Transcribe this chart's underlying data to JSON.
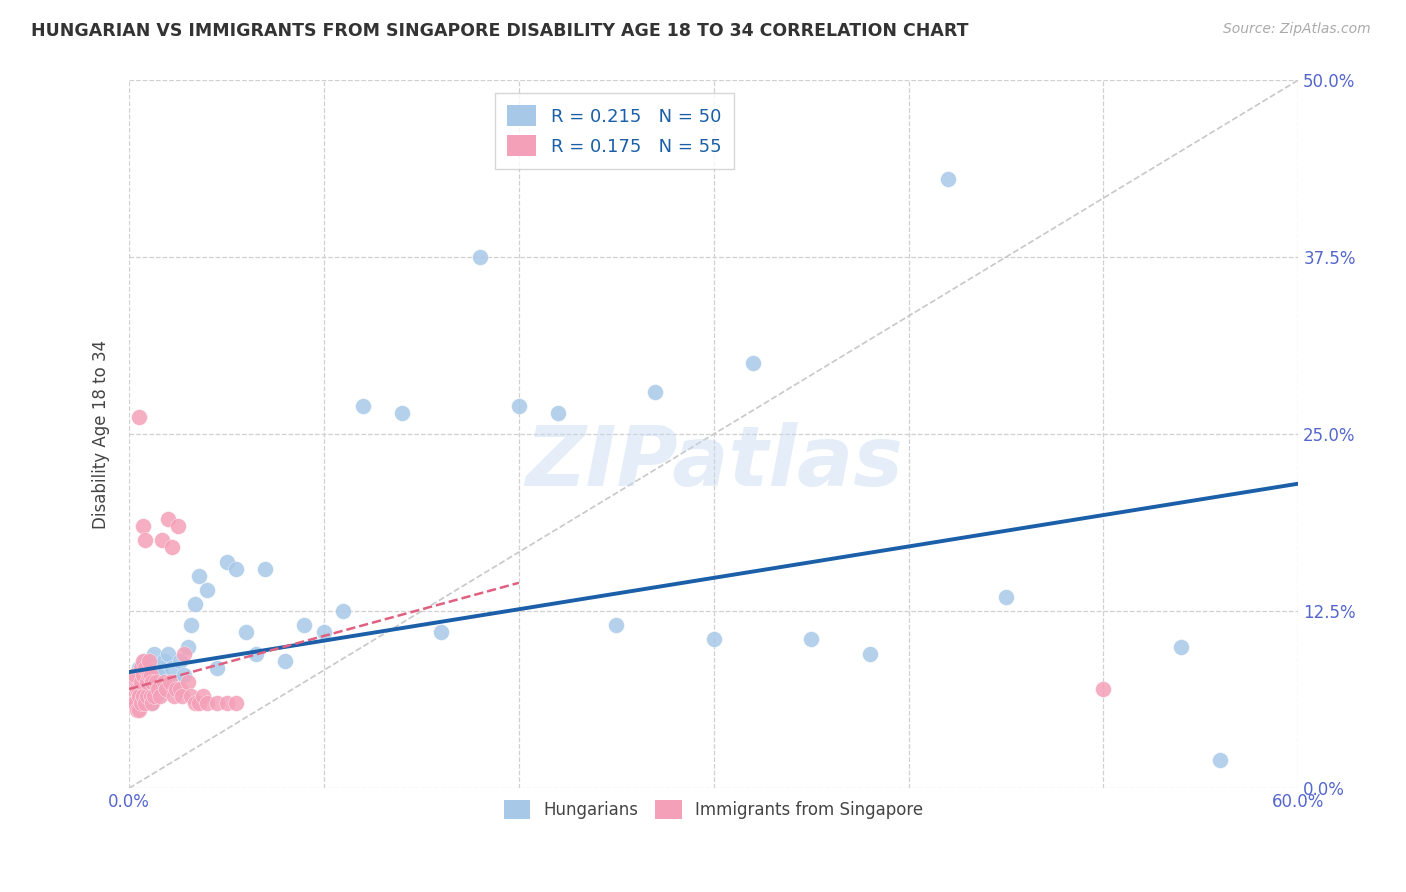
{
  "title": "HUNGARIAN VS IMMIGRANTS FROM SINGAPORE DISABILITY AGE 18 TO 34 CORRELATION CHART",
  "source": "Source: ZipAtlas.com",
  "ylabel": "Disability Age 18 to 34",
  "xlim": [
    0.0,
    0.6
  ],
  "ylim": [
    0.0,
    0.5
  ],
  "xticks": [
    0.0,
    0.1,
    0.2,
    0.3,
    0.4,
    0.5,
    0.6
  ],
  "yticks": [
    0.0,
    0.125,
    0.25,
    0.375,
    0.5
  ],
  "color_hungarian": "#a8c8e8",
  "color_singapore": "#f4a0b8",
  "color_hungarian_line": "#1a5fa8",
  "color_singapore_line": "#e06080",
  "color_diagonal": "#c8c8c8",
  "color_axis_text": "#5566cc",
  "background_color": "#ffffff",
  "watermark": "ZIPatlas",
  "legend_r1": "R = 0.215",
  "legend_n1": "N = 50",
  "legend_r2": "R = 0.175",
  "legend_n2": "N = 55",
  "hun_x": [
    0.005,
    0.006,
    0.007,
    0.008,
    0.009,
    0.01,
    0.011,
    0.012,
    0.013,
    0.014,
    0.015,
    0.016,
    0.017,
    0.018,
    0.02,
    0.022,
    0.024,
    0.026,
    0.028,
    0.03,
    0.032,
    0.034,
    0.036,
    0.04,
    0.045,
    0.05,
    0.055,
    0.06,
    0.065,
    0.07,
    0.08,
    0.09,
    0.1,
    0.11,
    0.12,
    0.14,
    0.16,
    0.18,
    0.2,
    0.22,
    0.25,
    0.27,
    0.3,
    0.32,
    0.35,
    0.38,
    0.42,
    0.45,
    0.54,
    0.56
  ],
  "hun_y": [
    0.085,
    0.075,
    0.065,
    0.09,
    0.07,
    0.08,
    0.06,
    0.085,
    0.095,
    0.065,
    0.075,
    0.085,
    0.08,
    0.09,
    0.095,
    0.085,
    0.075,
    0.09,
    0.08,
    0.1,
    0.115,
    0.13,
    0.15,
    0.14,
    0.085,
    0.16,
    0.155,
    0.11,
    0.095,
    0.155,
    0.09,
    0.115,
    0.11,
    0.125,
    0.27,
    0.265,
    0.11,
    0.375,
    0.27,
    0.265,
    0.115,
    0.28,
    0.105,
    0.3,
    0.105,
    0.095,
    0.43,
    0.135,
    0.1,
    0.02
  ],
  "sin_x": [
    0.001,
    0.002,
    0.002,
    0.003,
    0.003,
    0.004,
    0.004,
    0.005,
    0.005,
    0.005,
    0.006,
    0.006,
    0.006,
    0.007,
    0.007,
    0.007,
    0.008,
    0.008,
    0.009,
    0.009,
    0.01,
    0.01,
    0.011,
    0.011,
    0.012,
    0.012,
    0.013,
    0.014,
    0.015,
    0.016,
    0.017,
    0.018,
    0.019,
    0.02,
    0.021,
    0.022,
    0.023,
    0.024,
    0.025,
    0.026,
    0.027,
    0.028,
    0.03,
    0.032,
    0.034,
    0.036,
    0.038,
    0.04,
    0.045,
    0.05,
    0.055,
    0.5,
    0.005,
    0.007,
    0.008
  ],
  "sin_y": [
    0.065,
    0.06,
    0.075,
    0.06,
    0.08,
    0.055,
    0.07,
    0.055,
    0.07,
    0.065,
    0.06,
    0.075,
    0.085,
    0.065,
    0.08,
    0.09,
    0.06,
    0.085,
    0.065,
    0.075,
    0.08,
    0.09,
    0.065,
    0.08,
    0.06,
    0.075,
    0.065,
    0.075,
    0.07,
    0.065,
    0.175,
    0.075,
    0.07,
    0.19,
    0.075,
    0.17,
    0.065,
    0.07,
    0.185,
    0.07,
    0.065,
    0.095,
    0.075,
    0.065,
    0.06,
    0.06,
    0.065,
    0.06,
    0.06,
    0.06,
    0.06,
    0.07,
    0.262,
    0.185,
    0.175
  ]
}
